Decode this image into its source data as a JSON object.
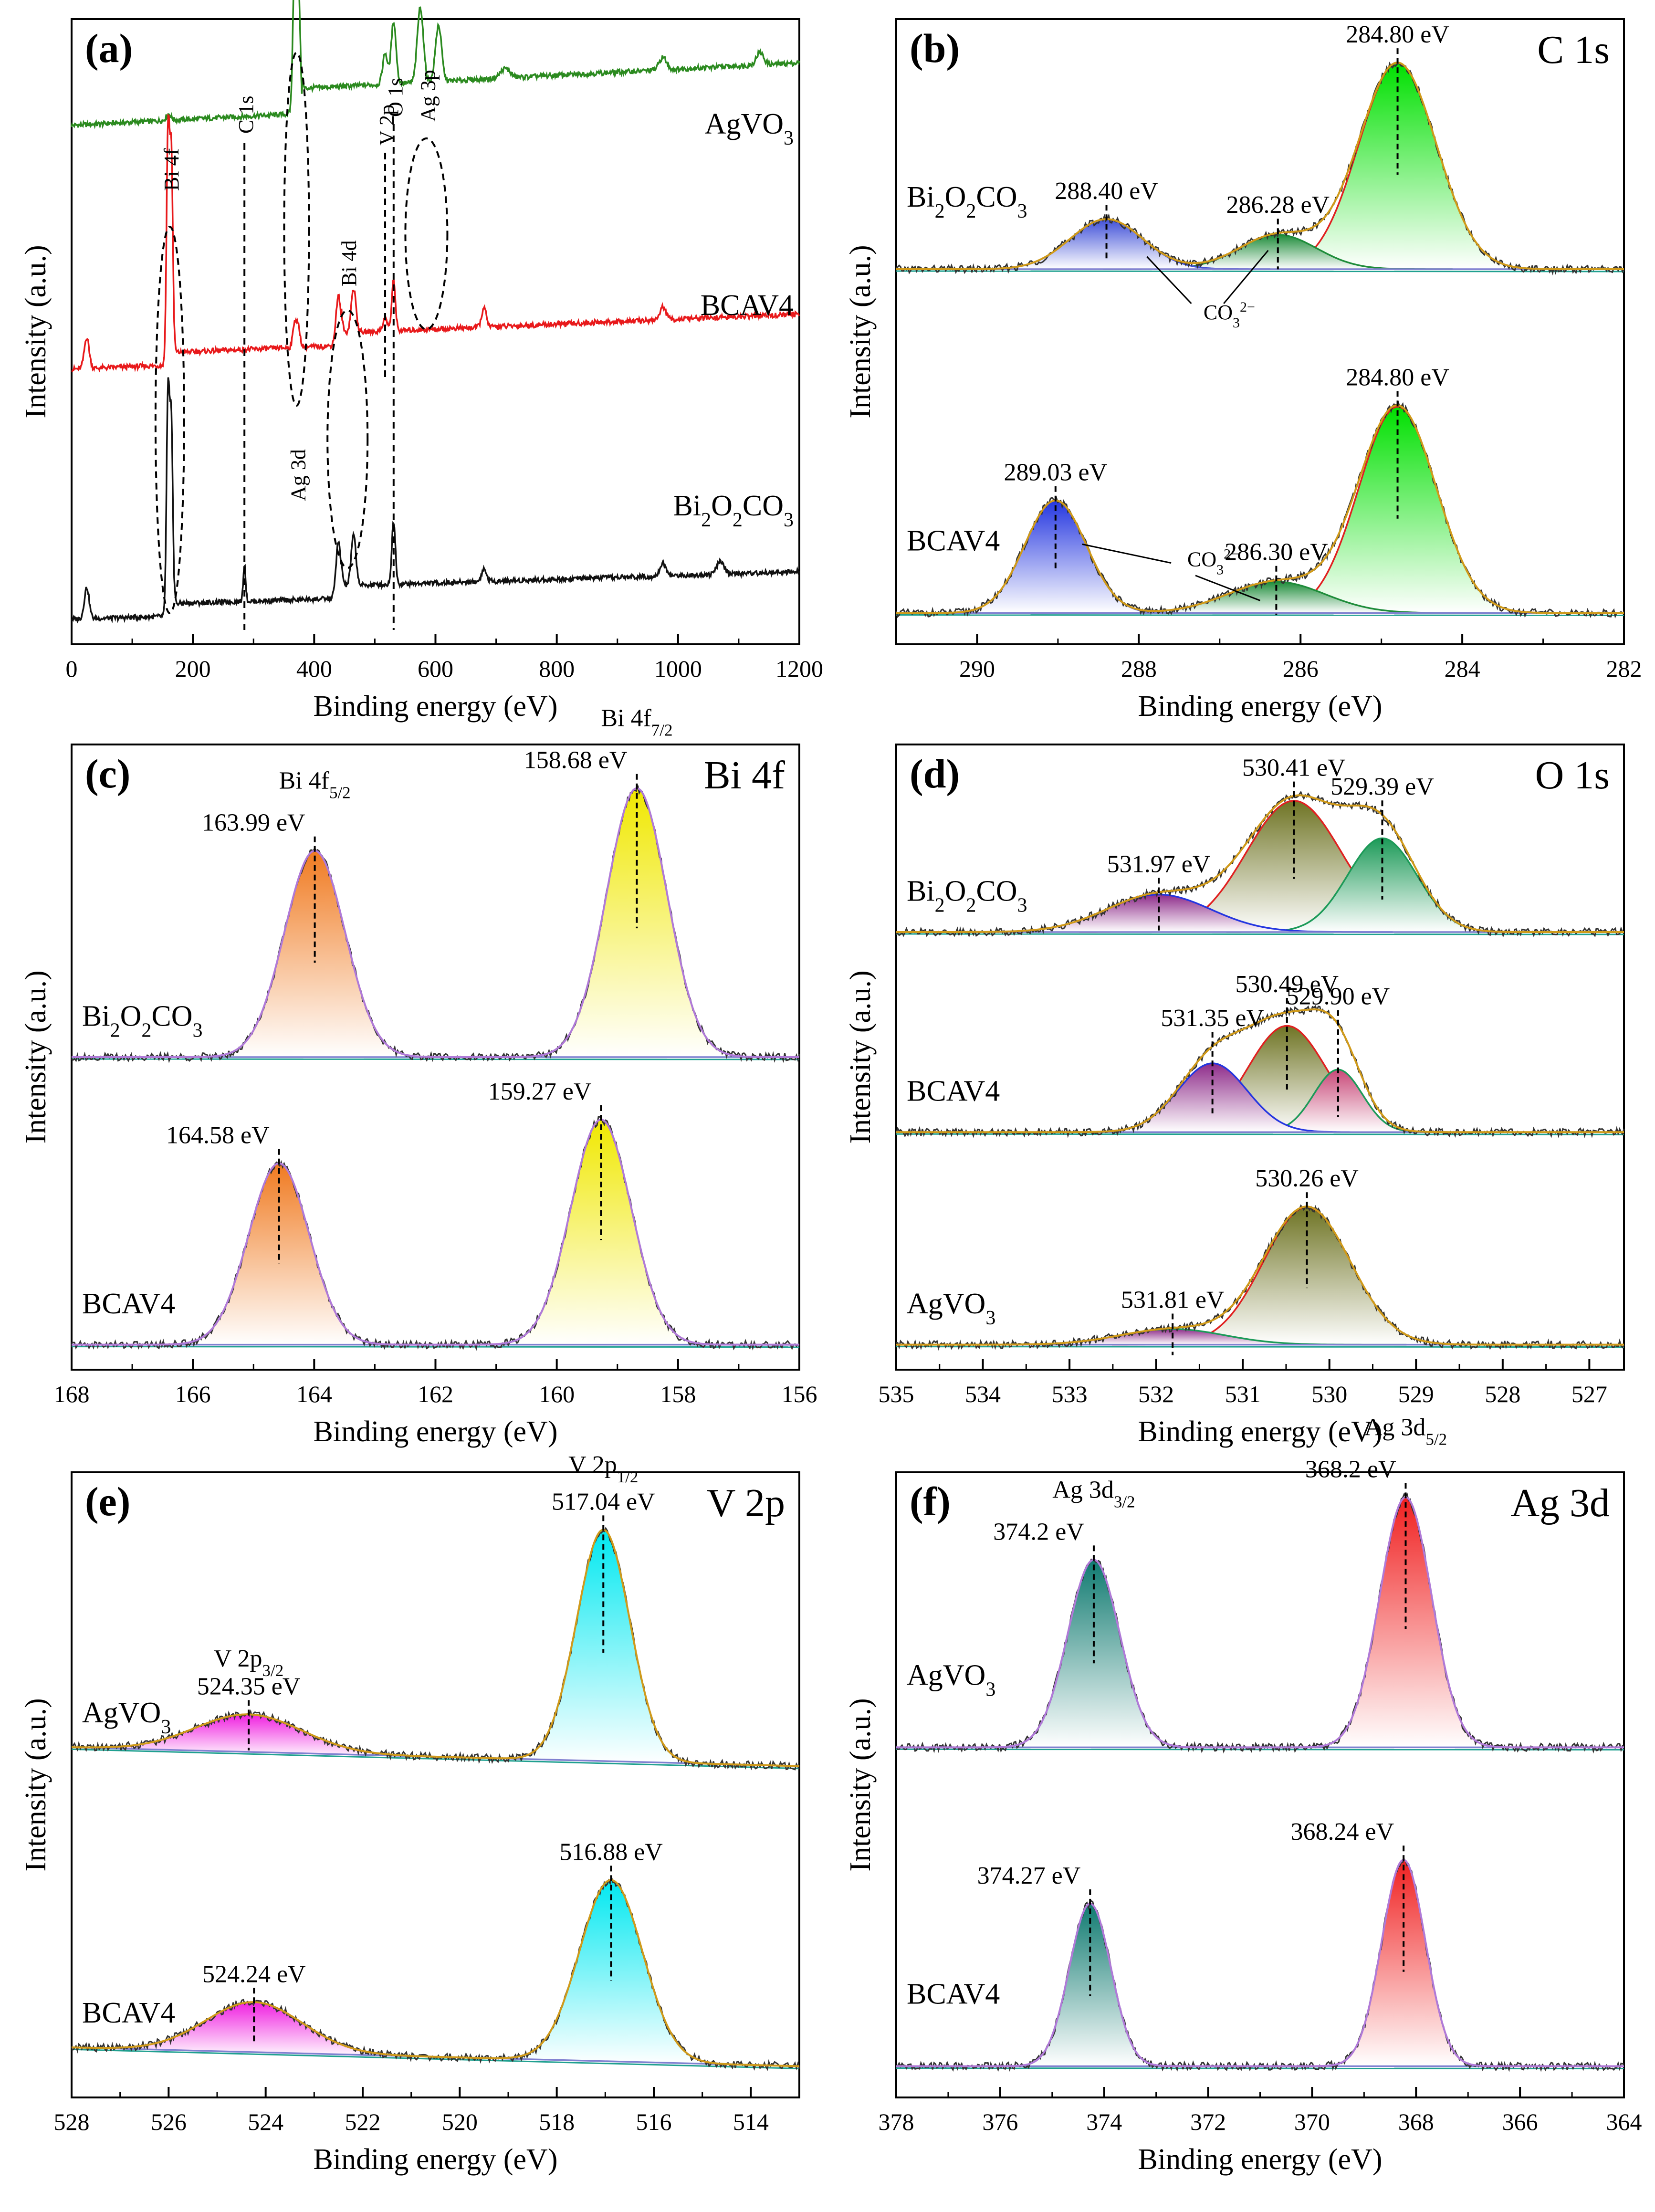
{
  "chart_data": [
    {
      "panel": "a",
      "type": "line",
      "label": "(a)",
      "title": "",
      "xlabel": "Binding energy (eV)",
      "ylabel": "Intensity (a.u.)",
      "xlim": [
        0,
        1200
      ],
      "xticks": [
        0,
        200,
        400,
        600,
        800,
        1000,
        1200
      ],
      "series": [
        {
          "name": "AgVO3",
          "label_main": "AgVO",
          "label_sub": "3",
          "label_tail": "",
          "color": "#2b8a1f",
          "baseline": 0.83,
          "slope": 5e-05,
          "peaks": [
            [
              160,
              0.01,
              4
            ],
            [
              368,
              0.24,
              3
            ],
            [
              374,
              0.2,
              3
            ],
            [
              517,
              0.05,
              4
            ],
            [
              531,
              0.1,
              4
            ],
            [
              575,
              0.12,
              5
            ],
            [
              605,
              0.09,
              5
            ],
            [
              715,
              0.015,
              8
            ],
            [
              975,
              0.02,
              6
            ],
            [
              1135,
              0.02,
              6
            ]
          ],
          "step": [
            [
              380,
              0.04
            ]
          ]
        },
        {
          "name": "BCAV4",
          "label_main": "BCAV4",
          "label_sub": "",
          "label_tail": "",
          "color": "#e8191b",
          "baseline": 0.44,
          "slope": 4e-05,
          "peaks": [
            [
              25,
              0.05,
              4
            ],
            [
              159,
              0.37,
              2.5
            ],
            [
              164.6,
              0.33,
              2.5
            ],
            [
              368,
              0.04,
              3
            ],
            [
              374,
              0.03,
              3
            ],
            [
              440,
              0.08,
              4
            ],
            [
              465,
              0.07,
              4
            ],
            [
              517,
              0.02,
              4
            ],
            [
              531,
              0.08,
              3
            ],
            [
              680,
              0.03,
              4
            ],
            [
              975,
              0.02,
              5
            ]
          ],
          "step": [
            [
              170,
              0.02
            ],
            [
              445,
              0.02
            ]
          ]
        },
        {
          "name": "Bi2O2CO3",
          "label_main": "Bi",
          "label_sub": "2",
          "label_tail": "O₂CO₃",
          "color": "#111111",
          "baseline": 0.04,
          "slope": 3e-05,
          "peaks": [
            [
              25,
              0.05,
              4
            ],
            [
              159,
              0.35,
              2.5
            ],
            [
              164.6,
              0.3,
              2.5
            ],
            [
              285,
              0.06,
              2
            ],
            [
              440,
              0.09,
              4
            ],
            [
              465,
              0.08,
              4
            ],
            [
              531,
              0.1,
              3
            ],
            [
              680,
              0.02,
              4
            ],
            [
              975,
              0.02,
              5
            ],
            [
              1070,
              0.02,
              6
            ]
          ],
          "step": [
            [
              170,
              0.02
            ],
            [
              445,
              0.02
            ]
          ]
        }
      ],
      "annotations": [
        "Bi 4f",
        "C 1s",
        "V 2p",
        "O 1s",
        "Ag 3p",
        "Bi 4d",
        "Ag 3d"
      ]
    },
    {
      "panel": "b",
      "type": "line",
      "label": "(b)",
      "title": "C 1s",
      "xlabel": "Binding energy (eV)",
      "ylabel": "Intensity (a.u.)",
      "xlim": [
        291,
        282
      ],
      "xticks": [
        290,
        288,
        286,
        284,
        282
      ],
      "samples": [
        {
          "name": "Bi2O2CO3",
          "baseline": 0.6,
          "components": [
            {
              "center": 284.8,
              "amp": 0.33,
              "sigma": 0.48,
              "color": "#00e000"
            },
            {
              "center": 286.28,
              "amp": 0.055,
              "sigma": 0.48,
              "color": "#1e8c3a"
            },
            {
              "center": 288.4,
              "amp": 0.08,
              "sigma": 0.45,
              "color": "#4050d8"
            }
          ],
          "labels": [
            "288.40 eV",
            "286.28 eV",
            "284.80 eV"
          ]
        },
        {
          "name": "BCAV4",
          "baseline": 0.05,
          "components": [
            {
              "center": 284.8,
              "amp": 0.33,
              "sigma": 0.48,
              "color": "#00e000"
            },
            {
              "center": 286.3,
              "amp": 0.05,
              "sigma": 0.6,
              "color": "#1e8c3a"
            },
            {
              "center": 289.03,
              "amp": 0.18,
              "sigma": 0.38,
              "color": "#2436e0"
            }
          ],
          "labels": [
            "289.03 eV",
            "286.30 eV",
            "284.80 eV"
          ]
        }
      ],
      "carbonate_label": "CO",
      "carbonate_sub": "3",
      "carbonate_sup": "2−"
    },
    {
      "panel": "c",
      "type": "line",
      "label": "(c)",
      "title": "Bi 4f",
      "xlabel": "Binding energy (eV)",
      "ylabel": "Intensity (a.u.)",
      "xlim": [
        168,
        156
      ],
      "xticks": [
        168,
        166,
        164,
        162,
        160,
        158,
        156
      ],
      "samples": [
        {
          "name": "Bi2O2CO3",
          "baseline": 0.5,
          "components": [
            {
              "center": 163.99,
              "amp": 0.33,
              "sigma": 0.5,
              "color": "#f07a20"
            },
            {
              "center": 158.68,
              "amp": 0.43,
              "sigma": 0.5,
              "color": "#f0e800"
            }
          ],
          "labels": [
            "163.99 eV",
            "158.68 eV"
          ]
        },
        {
          "name": "BCAV4",
          "baseline": 0.04,
          "components": [
            {
              "center": 164.58,
              "amp": 0.29,
              "sigma": 0.5,
              "color": "#f07a20"
            },
            {
              "center": 159.27,
              "amp": 0.36,
              "sigma": 0.5,
              "color": "#f0e800"
            }
          ],
          "labels": [
            "164.58 eV",
            "159.27 eV"
          ]
        }
      ],
      "peak_names": [
        "Bi 4f",
        "5/2",
        "Bi 4f",
        "7/2"
      ]
    },
    {
      "panel": "d",
      "type": "line",
      "label": "(d)",
      "title": "O 1s",
      "xlabel": "Binding energy (eV)",
      "ylabel": "Intensity (a.u.)",
      "xlim": [
        535,
        526.6
      ],
      "xticks": [
        535,
        534,
        533,
        532,
        531,
        530,
        529,
        528,
        527
      ],
      "samples": [
        {
          "name": "Bi2O2CO3",
          "baseline": 0.7,
          "components": [
            {
              "center": 530.41,
              "amp": 0.21,
              "sigma": 0.55,
              "color": "#6f7424"
            },
            {
              "center": 529.39,
              "amp": 0.15,
              "sigma": 0.4,
              "color": "#1c9a58"
            },
            {
              "center": 531.97,
              "amp": 0.06,
              "sigma": 0.6,
              "color": "#8e2c8a"
            }
          ],
          "labels": [
            "531.97 eV",
            "530.41 eV",
            "529.39 eV"
          ]
        },
        {
          "name": "BCAV4",
          "baseline": 0.38,
          "components": [
            {
              "center": 530.49,
              "amp": 0.17,
              "sigma": 0.45,
              "color": "#6f7424"
            },
            {
              "center": 529.9,
              "amp": 0.1,
              "sigma": 0.28,
              "color": "#c84878"
            },
            {
              "center": 531.35,
              "amp": 0.11,
              "sigma": 0.4,
              "color": "#8e2c8a"
            }
          ],
          "labels": [
            "531.35 eV",
            "530.49 eV",
            "529.90 eV"
          ]
        },
        {
          "name": "AgVO3",
          "baseline": 0.04,
          "components": [
            {
              "center": 530.26,
              "amp": 0.22,
              "sigma": 0.5,
              "color": "#6f7424"
            },
            {
              "center": 531.81,
              "amp": 0.025,
              "sigma": 0.6,
              "color": "#8e2c8a"
            }
          ],
          "labels": [
            "531.81 eV",
            "530.26 eV"
          ]
        }
      ]
    },
    {
      "panel": "e",
      "type": "line",
      "label": "(e)",
      "title": "V 2p",
      "xlabel": "Binding energy (eV)",
      "ylabel": "Intensity (a.u.)",
      "xlim": [
        528,
        513
      ],
      "xticks": [
        528,
        526,
        524,
        522,
        520,
        518,
        516,
        514
      ],
      "samples": [
        {
          "name": "AgVO3",
          "baseline": 0.53,
          "components": [
            {
              "center": 517.04,
              "amp": 0.37,
              "sigma": 0.55,
              "color": "#00e8f0"
            },
            {
              "center": 524.35,
              "amp": 0.06,
              "sigma": 1.1,
              "color": "#f020e0"
            }
          ],
          "labels": [
            "524.35 eV",
            "517.04 eV"
          ]
        },
        {
          "name": "BCAV4",
          "baseline": 0.05,
          "components": [
            {
              "center": 516.88,
              "amp": 0.29,
              "sigma": 0.65,
              "color": "#00e8f0"
            },
            {
              "center": 524.24,
              "amp": 0.08,
              "sigma": 1.0,
              "color": "#f020e0"
            }
          ],
          "labels": [
            "524.24 eV",
            "516.88 eV"
          ]
        }
      ],
      "peak_names": [
        "V 2p",
        "1/2",
        "V 2p",
        "3/2"
      ]
    },
    {
      "panel": "f",
      "type": "line",
      "label": "(f)",
      "title": "Ag 3d",
      "xlabel": "Binding energy (eV)",
      "ylabel": "Intensity (a.u.)",
      "xlim": [
        378,
        364
      ],
      "xticks": [
        378,
        376,
        374,
        372,
        370,
        368,
        366,
        364
      ],
      "samples": [
        {
          "name": "AgVO3",
          "baseline": 0.56,
          "components": [
            {
              "center": 374.2,
              "amp": 0.3,
              "sigma": 0.5,
              "color": "#0f7a70"
            },
            {
              "center": 368.2,
              "amp": 0.4,
              "sigma": 0.5,
              "color": "#f02020"
            }
          ],
          "labels": [
            "374.2 eV",
            "368.2 eV"
          ]
        },
        {
          "name": "BCAV4",
          "baseline": 0.05,
          "components": [
            {
              "center": 374.27,
              "amp": 0.26,
              "sigma": 0.4,
              "color": "#0f7a70"
            },
            {
              "center": 368.24,
              "amp": 0.33,
              "sigma": 0.42,
              "color": "#f02020"
            }
          ],
          "labels": [
            "374.27 eV",
            "368.24 eV"
          ]
        }
      ],
      "peak_names": [
        "Ag 3d",
        "3/2",
        "Ag 3d",
        "5/2"
      ]
    }
  ],
  "sample_names": {
    "AgVO3": [
      "AgVO",
      "3",
      ""
    ],
    "BCAV4": [
      "BCAV4",
      "",
      ""
    ],
    "Bi2O2CO3": [
      "Bi",
      "2",
      "O",
      "2",
      "CO",
      "3"
    ]
  },
  "colors": {
    "axis": "#000000",
    "envelope": "#d09a1a",
    "envelope_alt": "#b07ad8",
    "raw": "#333333",
    "background": "#8080d0",
    "background2": "#20a090"
  }
}
